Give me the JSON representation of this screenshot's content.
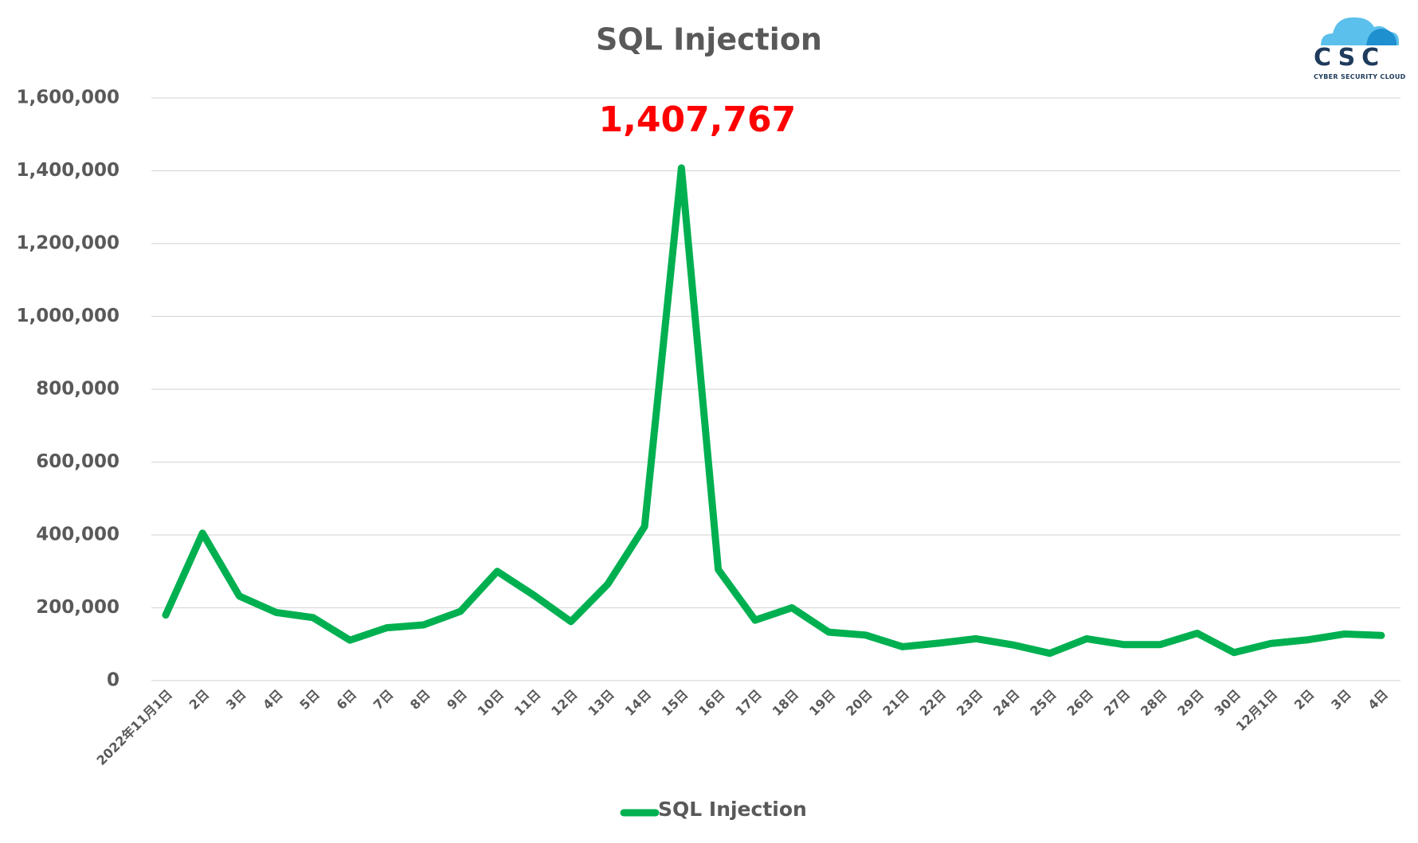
{
  "chart_data": {
    "type": "line",
    "title": "SQL Injection",
    "xlabel": "",
    "ylabel": "",
    "ylim": [
      0,
      1600000
    ],
    "yticks": [
      0,
      200000,
      400000,
      600000,
      800000,
      1000000,
      1200000,
      1400000,
      1600000
    ],
    "ytick_labels": [
      "0",
      "200,000",
      "400,000",
      "600,000",
      "800,000",
      "1,000,000",
      "1,200,000",
      "1,400,000",
      "1,600,000"
    ],
    "categories": [
      "2022年11月1日",
      "2日",
      "3日",
      "4日",
      "5日",
      "6日",
      "7日",
      "8日",
      "9日",
      "10日",
      "11日",
      "12日",
      "13日",
      "14日",
      "15日",
      "16日",
      "17日",
      "18日",
      "19日",
      "20日",
      "21日",
      "22日",
      "23日",
      "24日",
      "25日",
      "26日",
      "27日",
      "28日",
      "29日",
      "30日",
      "12月1日",
      "2日",
      "3日",
      "4日"
    ],
    "series": [
      {
        "name": "SQL Injection",
        "color": "#00b050",
        "values": [
          180000,
          405000,
          232000,
          187000,
          173000,
          111000,
          145000,
          153000,
          190000,
          300000,
          234000,
          162000,
          265000,
          423000,
          1407767,
          305000,
          166000,
          200000,
          133000,
          125000,
          93000,
          103000,
          115000,
          98000,
          75000,
          115000,
          99000,
          99000,
          130000,
          77000,
          102000,
          112000,
          128000,
          124000
        ]
      }
    ],
    "annotations": [
      {
        "text": "1,407,767",
        "category_index": 14,
        "color": "#ff0000"
      }
    ],
    "grid": true,
    "legend": "bottom-center"
  },
  "logo": {
    "text": "CSC",
    "subtitle": "CYBER SECURITY CLOUD",
    "colors": {
      "cloud_light": "#5bc0eb",
      "cloud_dark": "#1e8fcf",
      "text": "#1f3b5c"
    }
  }
}
